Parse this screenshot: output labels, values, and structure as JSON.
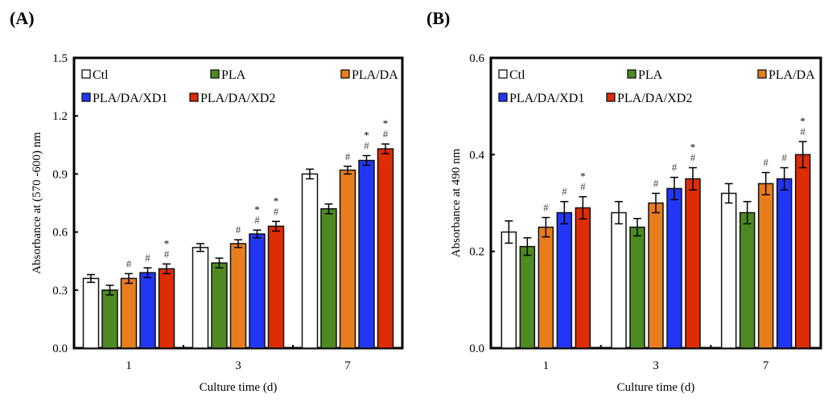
{
  "chart_data": [
    {
      "type": "bar",
      "panel_label": "(A)",
      "title": "",
      "xlabel": "Culture time (d)",
      "ylabel": "Absorbance at (570 -600) nm",
      "ylim": [
        0,
        1.5
      ],
      "yticks": [
        "0.0",
        "0.3",
        "0.6",
        "0.9",
        "1.2",
        "1.5"
      ],
      "ytick_values": [
        0,
        0.3,
        0.6,
        0.9,
        1.2,
        1.5
      ],
      "categories": [
        "1",
        "3",
        "7"
      ],
      "legend_position": "top-left",
      "grid": false,
      "series": [
        {
          "name": "Ctl",
          "color": "#ffffff",
          "values": [
            0.36,
            0.52,
            0.9
          ],
          "errors": [
            0.02,
            0.02,
            0.025
          ],
          "annotations": [
            "",
            "",
            ""
          ]
        },
        {
          "name": "PLA",
          "color": "#4e8a22",
          "values": [
            0.3,
            0.44,
            0.72
          ],
          "errors": [
            0.025,
            0.025,
            0.025
          ],
          "annotations": [
            "",
            "",
            ""
          ]
        },
        {
          "name": "PLA/DA",
          "color": "#e87d1e",
          "values": [
            0.36,
            0.54,
            0.92
          ],
          "errors": [
            0.025,
            0.02,
            0.02
          ],
          "annotations": [
            "#",
            "#",
            "#"
          ]
        },
        {
          "name": "PLA/DA/XD1",
          "color": "#2236f5",
          "values": [
            0.39,
            0.59,
            0.97
          ],
          "errors": [
            0.025,
            0.02,
            0.025
          ],
          "annotations": [
            "#",
            "#*",
            "#*"
          ]
        },
        {
          "name": "PLA/DA/XD2",
          "color": "#de2c05",
          "values": [
            0.41,
            0.63,
            1.03
          ],
          "errors": [
            0.025,
            0.025,
            0.025
          ],
          "annotations": [
            "#*",
            "#*",
            "#*"
          ]
        }
      ]
    },
    {
      "type": "bar",
      "panel_label": "(B)",
      "title": "",
      "xlabel": "Culture time (d)",
      "ylabel": "Absorbance at 490 nm",
      "ylim": [
        0,
        0.6
      ],
      "yticks": [
        "0.0",
        "0.2",
        "0.4",
        "0.6"
      ],
      "ytick_values": [
        0,
        0.2,
        0.4,
        0.6
      ],
      "categories": [
        "1",
        "3",
        "7"
      ],
      "legend_position": "top-left",
      "grid": false,
      "series": [
        {
          "name": "Ctl",
          "color": "#ffffff",
          "values": [
            0.24,
            0.28,
            0.32
          ],
          "errors": [
            0.023,
            0.023,
            0.02
          ],
          "annotations": [
            "",
            "",
            ""
          ]
        },
        {
          "name": "PLA",
          "color": "#4e8a22",
          "values": [
            0.21,
            0.25,
            0.28
          ],
          "errors": [
            0.018,
            0.018,
            0.023
          ],
          "annotations": [
            "",
            "",
            ""
          ]
        },
        {
          "name": "PLA/DA",
          "color": "#e87d1e",
          "values": [
            0.25,
            0.3,
            0.34
          ],
          "errors": [
            0.02,
            0.02,
            0.023
          ],
          "annotations": [
            "#",
            "#",
            "#"
          ]
        },
        {
          "name": "PLA/DA/XD1",
          "color": "#2236f5",
          "values": [
            0.28,
            0.33,
            0.35
          ],
          "errors": [
            0.023,
            0.023,
            0.023
          ],
          "annotations": [
            "#",
            "#",
            "#"
          ]
        },
        {
          "name": "PLA/DA/XD2",
          "color": "#de2c05",
          "values": [
            0.29,
            0.35,
            0.4
          ],
          "errors": [
            0.023,
            0.023,
            0.027
          ],
          "annotations": [
            "#*",
            "#*",
            "#*"
          ]
        }
      ]
    }
  ]
}
